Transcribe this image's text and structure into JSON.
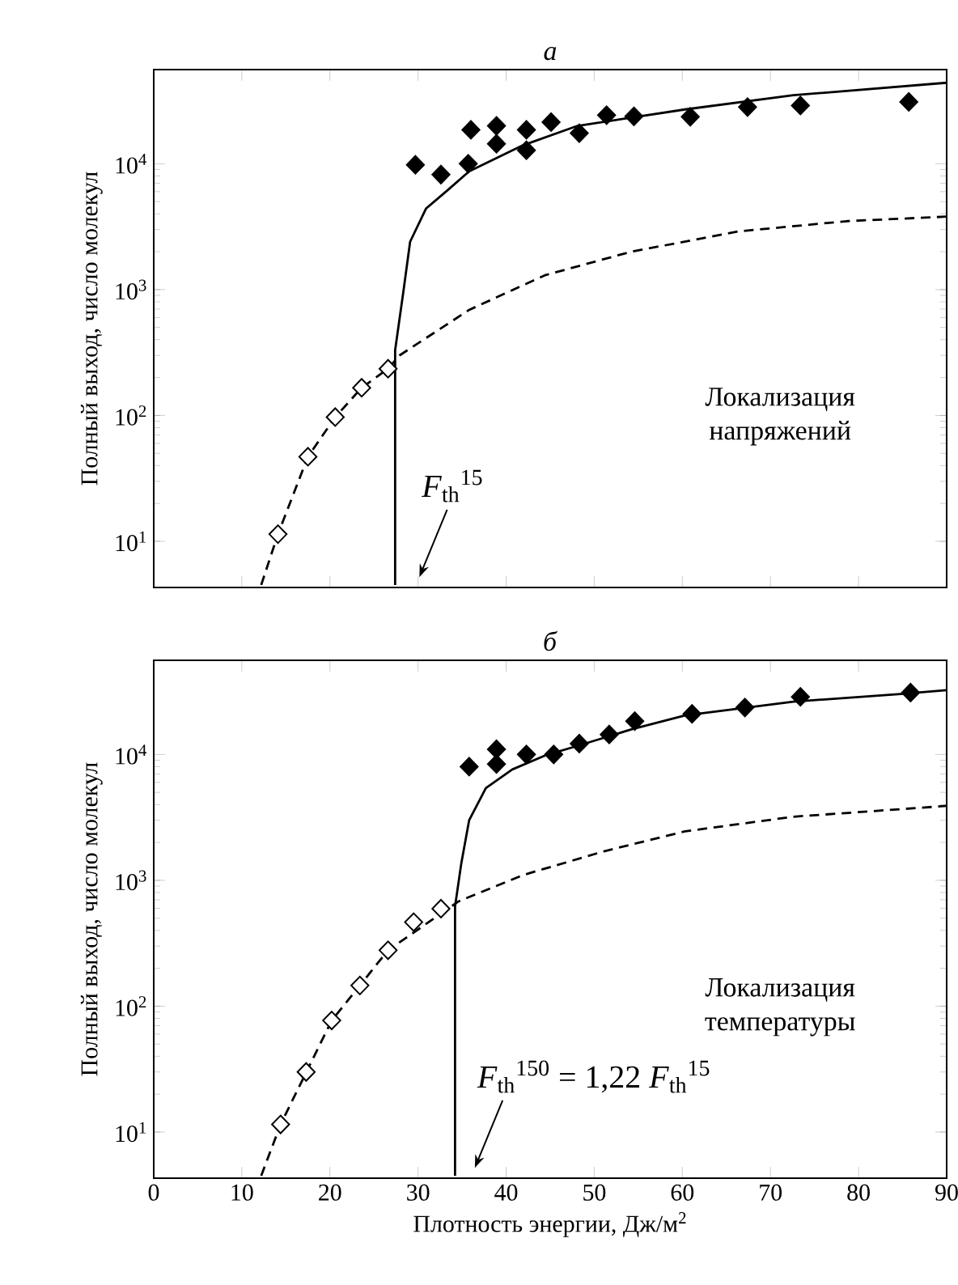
{
  "chart_data": [
    {
      "type": "scatter",
      "title": "*а*",
      "ylabel": "Полный выход, число молекул",
      "log": "y",
      "tick_labels": "y",
      "xlim": [
        0,
        90
      ],
      "ylim": [
        4.3,
        56000
      ],
      "xticks": [
        0,
        10,
        20,
        30,
        40,
        50,
        60,
        70,
        80,
        90
      ],
      "yticks": [
        {
          "value": 10,
          "label": "10$^{1}$"
        },
        {
          "value": 100,
          "label": "10$^{2}$"
        },
        {
          "value": 1000,
          "label": "10$^{3}$"
        },
        {
          "value": 10000,
          "label": "10$^{4}$"
        }
      ],
      "annotations": [
        "Локализация напряжений",
        "*F*$_{th}$$^{15}$"
      ],
      "series": [
        {
          "color": "#000000",
          "marker": "diamond",
          "x": [
            29.7,
            32.6,
            35.7,
            36.0,
            38.9,
            38.9,
            42.3,
            42.3,
            45.1,
            48.3,
            51.4,
            54.5,
            60.9,
            67.4,
            73.4,
            85.7
          ],
          "values": [
            9800,
            8200,
            10000,
            18600,
            20000,
            14400,
            18600,
            12800,
            21400,
            17500,
            24300,
            23800,
            23600,
            28200,
            29000,
            31000
          ]
        },
        {
          "color": "#ffffff",
          "marker": "diamond",
          "x": [
            14.1,
            17.5,
            20.6,
            23.6,
            26.6
          ],
          "values": [
            11.4,
            47,
            97,
            166,
            235
          ]
        },
        {
          "type": "line",
          "color": "#000000",
          "marker": "none",
          "line_style": "solid",
          "x": [
            27.4,
            27.4,
            28.35,
            29.1,
            30.9,
            33.4,
            35.8,
            41.9,
            48.1,
            60.3,
            72.6,
            90
          ],
          "values": [
            4.5,
            330,
            980,
            2400,
            4400,
            6200,
            8700,
            14000,
            20000,
            27000,
            35000,
            44000
          ]
        },
        {
          "type": "line",
          "color": "#000000",
          "marker": "none",
          "line_style": "dashed",
          "x": [
            12.2,
            14.1,
            17.5,
            20.6,
            23.6,
            26.6,
            27.9,
            35.8,
            44.4,
            54.2,
            66.4,
            78.7,
            90
          ],
          "values": [
            4.5,
            11.4,
            47,
            97,
            166,
            235,
            300,
            690,
            1300,
            2000,
            2900,
            3500,
            3800
          ]
        }
      ]
    },
    {
      "type": "scatter",
      "title": "*б*",
      "xlabel": "Плотность энергии, Дж/м$^{2}$",
      "ylabel": "Полный выход, число молекул",
      "log": "y",
      "xlim": [
        0,
        90
      ],
      "ylim": [
        4.3,
        56000
      ],
      "xticks": [
        0,
        10,
        20,
        30,
        40,
        50,
        60,
        70,
        80,
        90
      ],
      "yticks": [
        {
          "value": 10,
          "label": "10$^{1}$"
        },
        {
          "value": 100,
          "label": "10$^{2}$"
        },
        {
          "value": 1000,
          "label": "10$^{3}$"
        },
        {
          "value": 10000,
          "label": "10$^{4}$"
        }
      ],
      "annotations": [
        "Локализация температуры",
        "*F*$_{th}$$^{150}$ = 1,22 *F*$_{th}$$^{15}$"
      ],
      "series": [
        {
          "color": "#000000",
          "marker": "diamond",
          "x": [
            35.8,
            38.9,
            38.9,
            42.3,
            45.4,
            48.3,
            51.7,
            54.6,
            61.1,
            67.1,
            73.4,
            85.9
          ],
          "values": [
            8000,
            11000,
            8400,
            10000,
            10000,
            12200,
            14400,
            18400,
            21000,
            23600,
            28700,
            31000
          ]
        },
        {
          "color": "#ffffff",
          "marker": "diamond",
          "x": [
            14.4,
            17.3,
            20.2,
            23.4,
            26.6,
            29.5,
            32.6
          ],
          "values": [
            11.5,
            30,
            77,
            146,
            278,
            465,
            595
          ]
        },
        {
          "type": "line",
          "color": "#000000",
          "marker": "none",
          "line_style": "solid",
          "x": [
            34.2,
            34.2,
            34.9,
            35.8,
            37.7,
            40.7,
            44.4,
            48.1,
            54.2,
            60.3,
            72.6,
            84.8,
            90
          ],
          "values": [
            4.5,
            620,
            1350,
            3000,
            5400,
            7600,
            9800,
            11700,
            15800,
            20400,
            26300,
            30200,
            32400
          ]
        },
        {
          "type": "line",
          "color": "#000000",
          "marker": "none",
          "line_style": "dashed",
          "x": [
            12.2,
            14.4,
            20.2,
            26.6,
            34.6,
            41.9,
            51.1,
            60.3,
            72.6,
            90
          ],
          "values": [
            4.5,
            11.5,
            77,
            278,
            680,
            1100,
            1700,
            2450,
            3200,
            3900
          ]
        }
      ]
    }
  ]
}
